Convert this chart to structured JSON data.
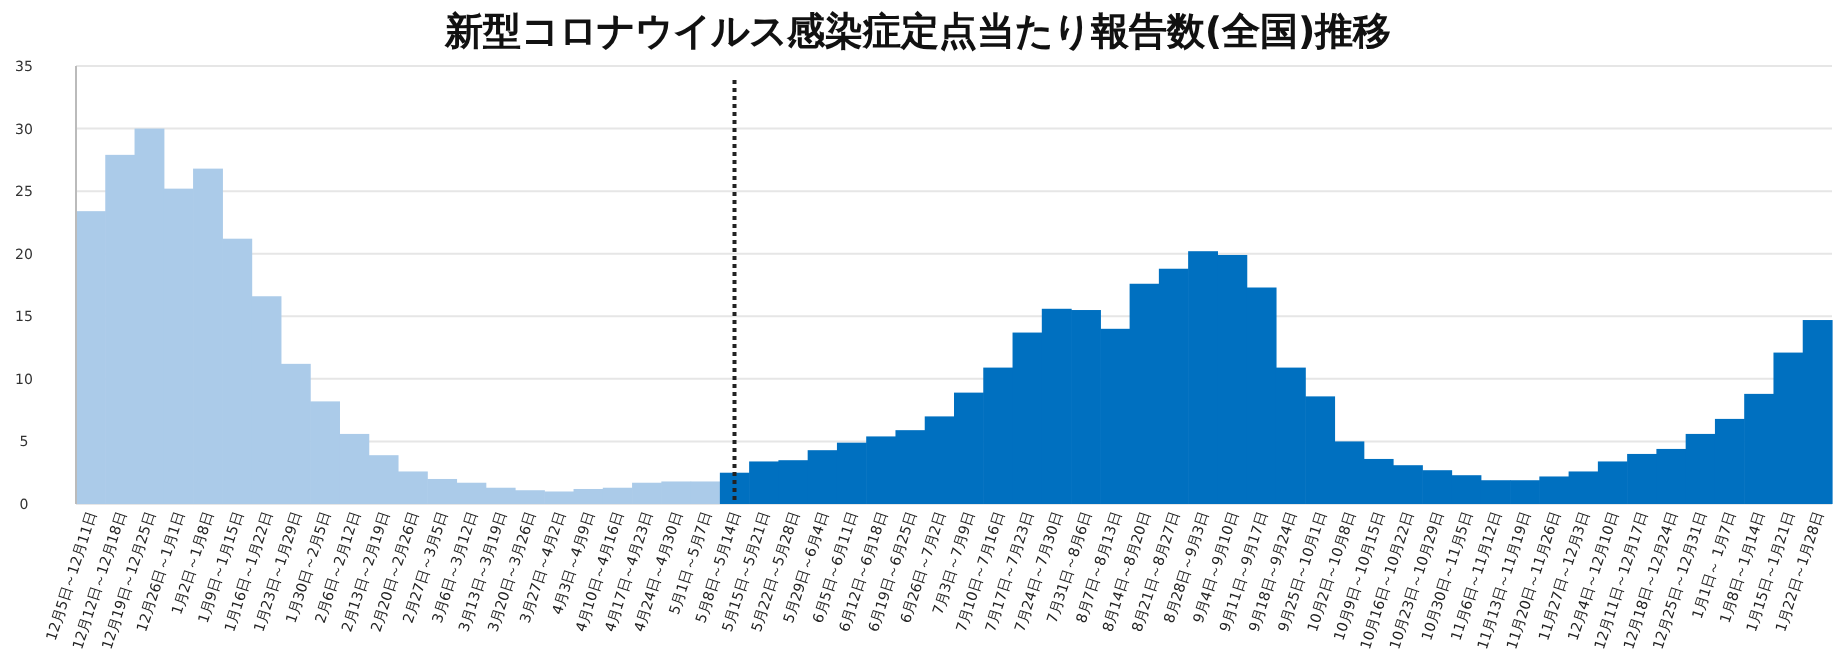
{
  "chart_data": {
    "type": "bar",
    "title": "新型コロナウイルス感染症定点当たり報告数(全国)推移",
    "categories": [
      "12月5日～12月11日",
      "12月12日～12月18日",
      "12月19日～12月25日",
      "12月26日～1月1日",
      "1月2日～1月8日",
      "1月9日～1月15日",
      "1月16日～1月22日",
      "1月23日～1月29日",
      "1月30日～2月5日",
      "2月6日～2月12日",
      "2月13日～2月19日",
      "2月20日～2月26日",
      "2月27日～3月5日",
      "3月6日～3月12日",
      "3月13日～3月19日",
      "3月20日～3月26日",
      "3月27日～4月2日",
      "4月3日～4月9日",
      "4月10日～4月16日",
      "4月17日～4月23日",
      "4月24日～4月30日",
      "5月1日～5月7日",
      "5月8日～5月14日",
      "5月15日～5月21日",
      "5月22日～5月28日",
      "5月29日～6月4日",
      "6月5日～6月11日",
      "6月12日～6月18日",
      "6月19日～6月25日",
      "6月26日～7月2日",
      "7月3日～7月9日",
      "7月10日～7月16日",
      "7月17日～7月23日",
      "7月24日～7月30日",
      "7月31日～8月6日",
      "8月7日～8月13日",
      "8月14日～8月20日",
      "8月21日～8月27日",
      "8月28日～9月3日",
      "9月4日～9月10日",
      "9月11日～9月17日",
      "9月18日～9月24日",
      "9月25日～10月1日",
      "10月2日～10月8日",
      "10月9日～10月15日",
      "10月16日～10月22日",
      "10月23日～10月29日",
      "10月30日～11月5日",
      "11月6日～11月12日",
      "11月13日～11月19日",
      "11月20日～11月26日",
      "11月27日～12月3日",
      "12月4日～12月10日",
      "12月11日～12月17日",
      "12月18日～12月24日",
      "12月25日～12月31日",
      "1月1日～ 1月7日",
      "1月8日～1月14日",
      "1月15日～1月21日",
      "1月22日～1月28日"
    ],
    "series": [
      {
        "color": "#abcbe9",
        "values": [
          23.4,
          27.9,
          30.0,
          25.2,
          26.8,
          21.2,
          16.6,
          11.2,
          8.2,
          5.6,
          3.9,
          2.6,
          2.0,
          1.7,
          1.3,
          1.1,
          1.0,
          1.2,
          1.3,
          1.7,
          1.8,
          1.8,
          null,
          null,
          null,
          null,
          null,
          null,
          null,
          null,
          null,
          null,
          null,
          null,
          null,
          null,
          null,
          null,
          null,
          null,
          null,
          null,
          null,
          null,
          null,
          null,
          null,
          null,
          null,
          null,
          null,
          null,
          null,
          null,
          null,
          null,
          null,
          null,
          null,
          null
        ]
      },
      {
        "color": "#0070c0",
        "values": [
          null,
          null,
          null,
          null,
          null,
          null,
          null,
          null,
          null,
          null,
          null,
          null,
          null,
          null,
          null,
          null,
          null,
          null,
          null,
          null,
          null,
          null,
          2.5,
          3.4,
          3.5,
          4.3,
          4.9,
          5.4,
          5.9,
          7.0,
          8.9,
          10.9,
          13.7,
          15.6,
          15.5,
          14.0,
          17.6,
          18.8,
          20.2,
          19.9,
          17.3,
          10.9,
          8.6,
          5.0,
          3.6,
          3.1,
          2.7,
          2.3,
          1.9,
          1.9,
          2.2,
          2.6,
          3.4,
          4.0,
          4.4,
          5.6,
          6.8,
          8.8,
          12.1,
          14.7
        ]
      }
    ],
    "ylim": [
      0,
      35
    ],
    "yticks": [
      0,
      5,
      10,
      15,
      20,
      25,
      30,
      35
    ],
    "grid": "y",
    "ref_lines": [
      {
        "axis": "x",
        "value": "5月8日～5月14日",
        "color": "#222222",
        "line_style": "dotted"
      }
    ]
  }
}
